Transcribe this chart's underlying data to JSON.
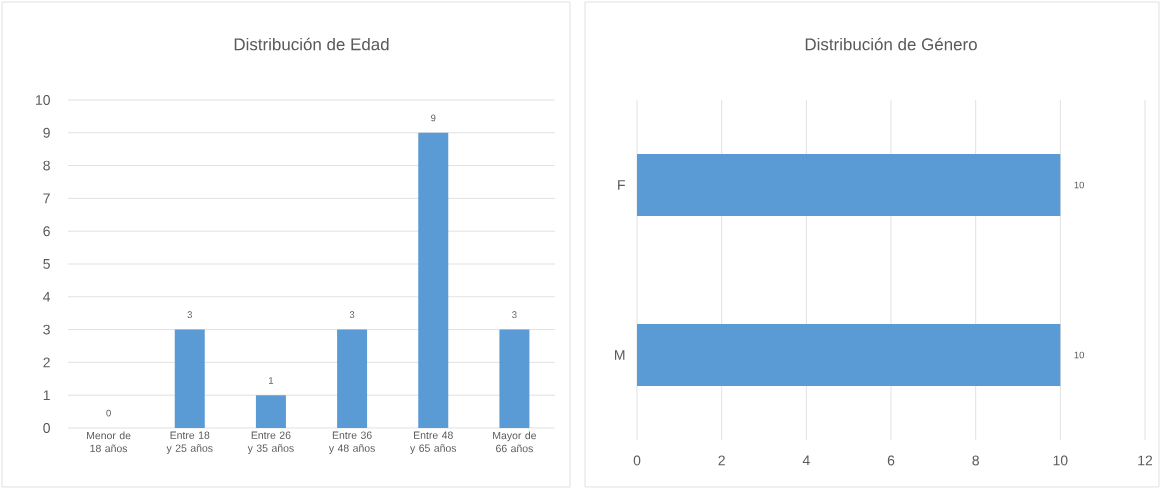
{
  "chart_data": [
    {
      "type": "bar",
      "title": "Distribución de Edad",
      "categories": [
        "Menor de 18 años",
        "Entre 18 y 25 años",
        "Entre 26 y 35 años",
        "Entre 36 y 48 años",
        "Entre 48 y 65 años",
        "Mayor de 66 años"
      ],
      "values": [
        0,
        3,
        1,
        3,
        9,
        3
      ],
      "color": "#5b9bd5",
      "ylim": [
        0,
        10
      ],
      "yticks": [
        0,
        1,
        2,
        3,
        4,
        5,
        6,
        7,
        8,
        9,
        10
      ],
      "grid": "y",
      "data_labels": true
    },
    {
      "type": "bar",
      "orientation": "horizontal",
      "title": "Distribución de Género",
      "categories": [
        "F",
        "M"
      ],
      "values": [
        10,
        10
      ],
      "color": "#5b9bd5",
      "xlim": [
        0,
        12
      ],
      "xticks": [
        0,
        2,
        4,
        6,
        8,
        10,
        12
      ],
      "grid": "x",
      "data_labels": true
    }
  ]
}
